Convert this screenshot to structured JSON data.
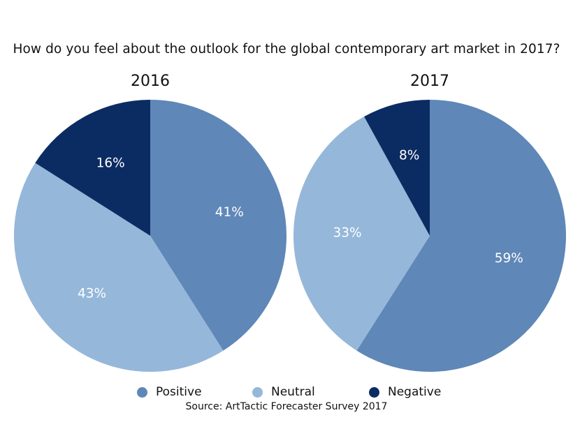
{
  "title": "How do you feel about the outlook for the global contemporary art market in 2017?",
  "source": "Source: ArtTactic Forecaster Survey 2017",
  "colors": {
    "Positive": "#5f87b8",
    "Neutral": "#95b7da",
    "Negative": "#0b2c62"
  },
  "legend": [
    {
      "label": "Positive",
      "key": "Positive"
    },
    {
      "label": "Neutral",
      "key": "Neutral"
    },
    {
      "label": "Negative",
      "key": "Negative"
    }
  ],
  "chart_data": [
    {
      "type": "pie",
      "title": "2016",
      "categories": [
        "Positive",
        "Neutral",
        "Negative"
      ],
      "values": [
        41,
        43,
        16
      ],
      "labels": [
        "41%",
        "43%",
        "16%"
      ]
    },
    {
      "type": "pie",
      "title": "2017",
      "categories": [
        "Positive",
        "Neutral",
        "Negative"
      ],
      "values": [
        59,
        33,
        8
      ],
      "labels": [
        "59%",
        "33%",
        "8%"
      ]
    }
  ]
}
